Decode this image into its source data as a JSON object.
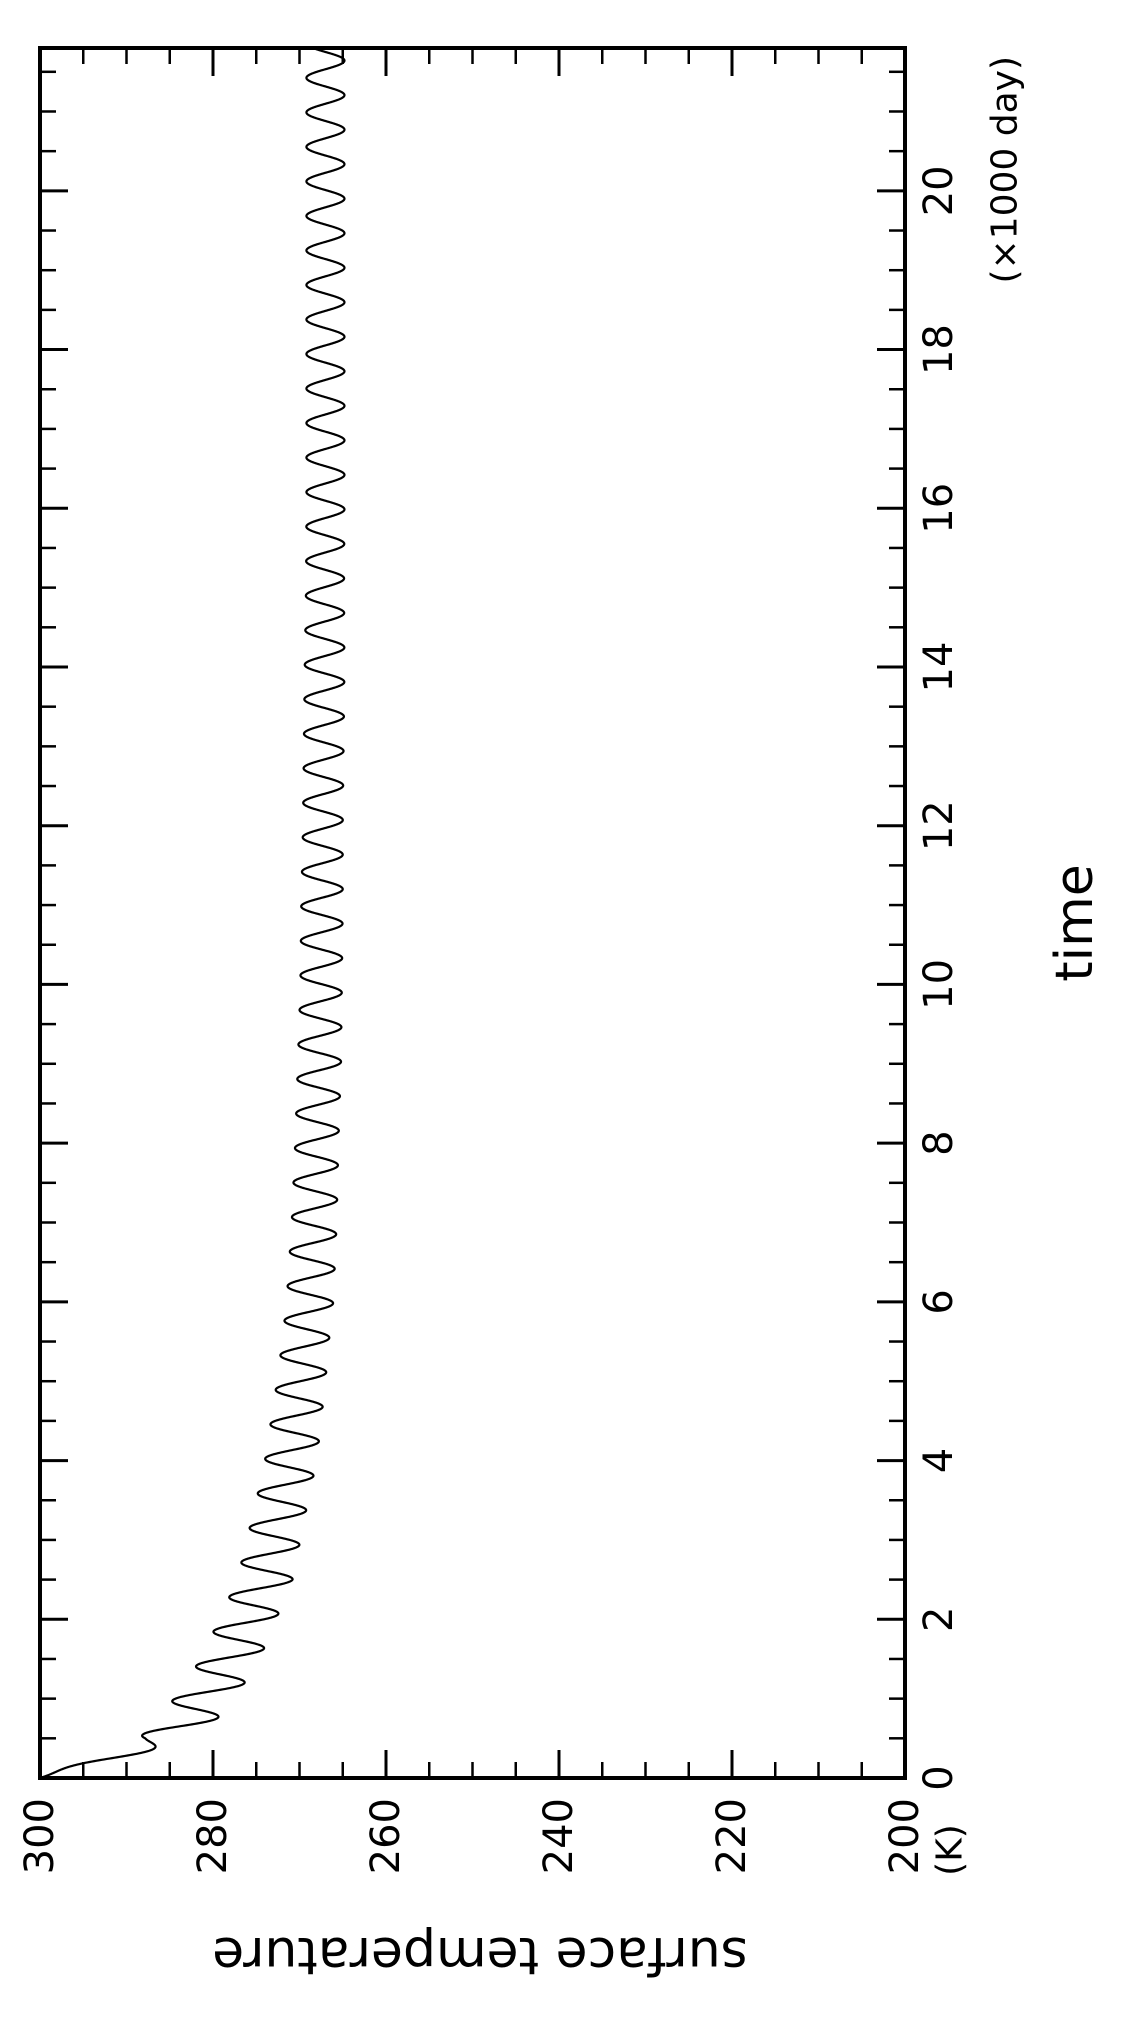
{
  "chart_data": {
    "type": "line",
    "orientation": "rotated-90-clockwise",
    "xlabel": "time",
    "x_unit": "(×1000 day)",
    "ylabel": "surface temperature",
    "y_unit": "(K)",
    "xlim": [
      0,
      21.8
    ],
    "ylim": [
      200,
      300
    ],
    "x_ticks": [
      "0",
      "2",
      "4",
      "6",
      "8",
      "10",
      "12",
      "14",
      "16",
      "18",
      "20"
    ],
    "y_ticks": [
      "200",
      "220",
      "240",
      "260",
      "280",
      "300"
    ],
    "x_minor_step": 0.5,
    "y_minor_step": 5,
    "grid": false,
    "legend": "none",
    "series": [
      {
        "line_color": "#000000",
        "oscillation_period": 0.435,
        "x": [
          0,
          0.5,
          1,
          1.5,
          2,
          2.5,
          3,
          3.5,
          4,
          4.5,
          5,
          5.5,
          6,
          7,
          8,
          9,
          10,
          11,
          12,
          13,
          14,
          15,
          16,
          17,
          18,
          19,
          20,
          21,
          21.8
        ],
        "mean": [
          300,
          285,
          281,
          278,
          276,
          274,
          273,
          272,
          271,
          270.4,
          269.8,
          269.3,
          268.8,
          268.3,
          268,
          267.7,
          267.5,
          267.4,
          267.3,
          267.2,
          267.1,
          267.05,
          267,
          267,
          267,
          267,
          267,
          267,
          267
        ],
        "amplitude": [
          0,
          3.5,
          3.5,
          3.4,
          3.3,
          3.2,
          3.1,
          3.0,
          3.0,
          2.9,
          2.8,
          2.7,
          2.7,
          2.6,
          2.5,
          2.5,
          2.4,
          2.4,
          2.3,
          2.3,
          2.3,
          2.2,
          2.2,
          2.2,
          2.2,
          2.2,
          2.2,
          2.2,
          2.2
        ]
      }
    ]
  }
}
